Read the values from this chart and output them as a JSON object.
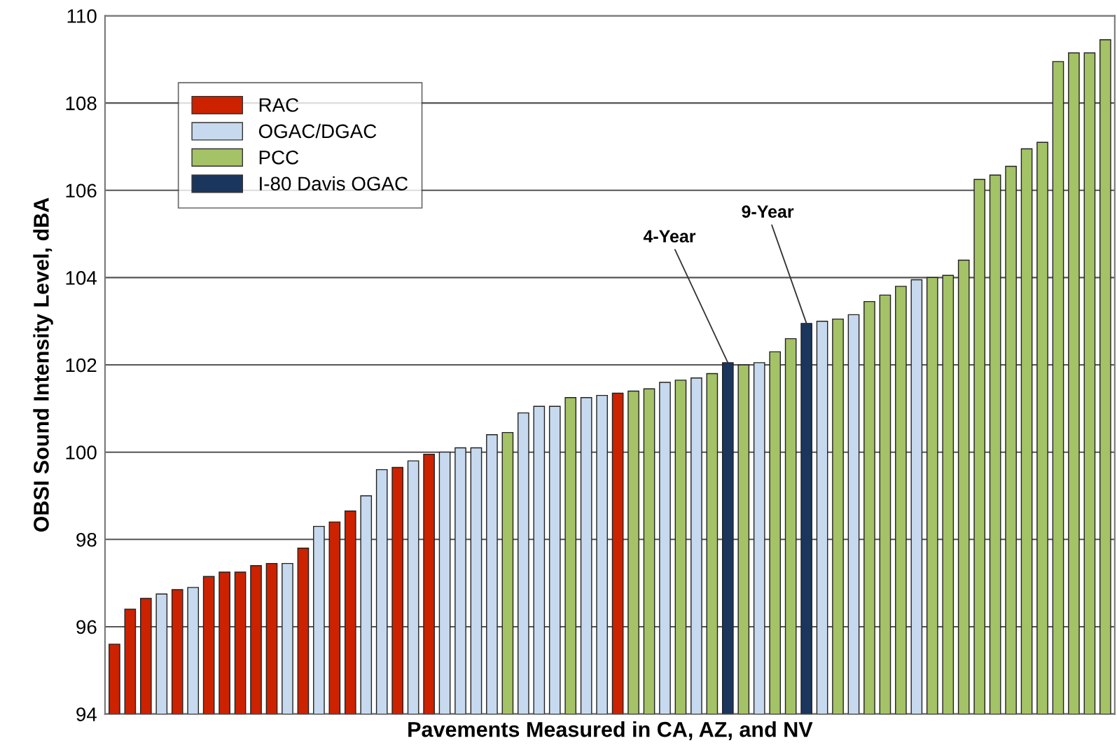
{
  "chart_data": {
    "type": "bar",
    "xlabel": "Pavements Measured in CA, AZ, and NV",
    "ylabel": "OBSI Sound Intensity Level, dBA",
    "categories": [
      null,
      null,
      null,
      null,
      null,
      null,
      null,
      null,
      null,
      null,
      null,
      null,
      null,
      null,
      null,
      null,
      null,
      null,
      null,
      null,
      null,
      null,
      null,
      null,
      null,
      null,
      null,
      null,
      null,
      null,
      null,
      null,
      null,
      null,
      null,
      null,
      null,
      null,
      null,
      null,
      null,
      null,
      null,
      null,
      null,
      null,
      null,
      null,
      null,
      null,
      null,
      null,
      null,
      null,
      null,
      null,
      null,
      null,
      null,
      null,
      null,
      null,
      null,
      null
    ],
    "series": [
      {
        "name": "RAC",
        "color": "#cc2200",
        "values": [
          95.6,
          96.4,
          96.65,
          null,
          96.85,
          null,
          97.15,
          97.25,
          97.25,
          97.4,
          97.45,
          null,
          97.8,
          null,
          98.4,
          98.65,
          null,
          null,
          99.65,
          null,
          99.95,
          null,
          null,
          null,
          null,
          null,
          null,
          null,
          null,
          null,
          null,
          null,
          101.35,
          null,
          null,
          null,
          null,
          null,
          null,
          null,
          null,
          null,
          null,
          null,
          null,
          null,
          null,
          null,
          null,
          null,
          null,
          null,
          null,
          null,
          null,
          null,
          null,
          null,
          null,
          null,
          null,
          null,
          null,
          null
        ]
      },
      {
        "name": "OGAC/DGAC",
        "color": "#c6d9ee",
        "values": [
          null,
          null,
          null,
          96.75,
          null,
          96.9,
          null,
          null,
          null,
          null,
          null,
          97.45,
          null,
          98.3,
          null,
          null,
          99.0,
          99.6,
          null,
          99.8,
          null,
          100.0,
          100.1,
          100.1,
          100.4,
          null,
          100.9,
          101.05,
          101.05,
          null,
          101.25,
          101.3,
          null,
          null,
          null,
          101.6,
          null,
          101.7,
          null,
          null,
          null,
          102.05,
          null,
          null,
          null,
          103.0,
          null,
          103.15,
          null,
          null,
          null,
          103.95,
          null,
          null,
          null,
          null,
          null,
          null,
          null,
          null,
          null,
          null,
          null,
          null
        ]
      },
      {
        "name": "PCC",
        "color": "#a4c266",
        "values": [
          null,
          null,
          null,
          null,
          null,
          null,
          null,
          null,
          null,
          null,
          null,
          null,
          null,
          null,
          null,
          null,
          null,
          null,
          null,
          null,
          null,
          null,
          null,
          null,
          null,
          100.45,
          null,
          null,
          null,
          101.25,
          null,
          null,
          null,
          101.4,
          101.45,
          null,
          101.65,
          null,
          101.8,
          null,
          102.0,
          null,
          102.3,
          102.6,
          null,
          null,
          103.05,
          null,
          103.45,
          103.6,
          103.8,
          null,
          104.0,
          104.05,
          104.4,
          106.25,
          106.35,
          106.55,
          106.95,
          107.1,
          108.95,
          109.15,
          109.15,
          109.45
        ]
      },
      {
        "name": "I-80 Davis OGAC",
        "color": "#1b365d",
        "values": [
          null,
          null,
          null,
          null,
          null,
          null,
          null,
          null,
          null,
          null,
          null,
          null,
          null,
          null,
          null,
          null,
          null,
          null,
          null,
          null,
          null,
          null,
          null,
          null,
          null,
          null,
          null,
          null,
          null,
          null,
          null,
          null,
          null,
          null,
          null,
          null,
          null,
          null,
          null,
          102.05,
          null,
          null,
          null,
          null,
          102.95,
          null,
          null,
          null,
          null,
          null,
          null,
          null,
          null,
          null,
          null,
          null,
          null,
          null,
          null,
          null,
          null,
          null,
          null,
          null
        ]
      }
    ],
    "ylim": [
      94,
      110
    ],
    "yticks": [
      94,
      96,
      98,
      100,
      102,
      104,
      106,
      108,
      110
    ],
    "grid": "y",
    "legend": "top left",
    "annotations": [
      "4-Year",
      "9-Year"
    ]
  }
}
